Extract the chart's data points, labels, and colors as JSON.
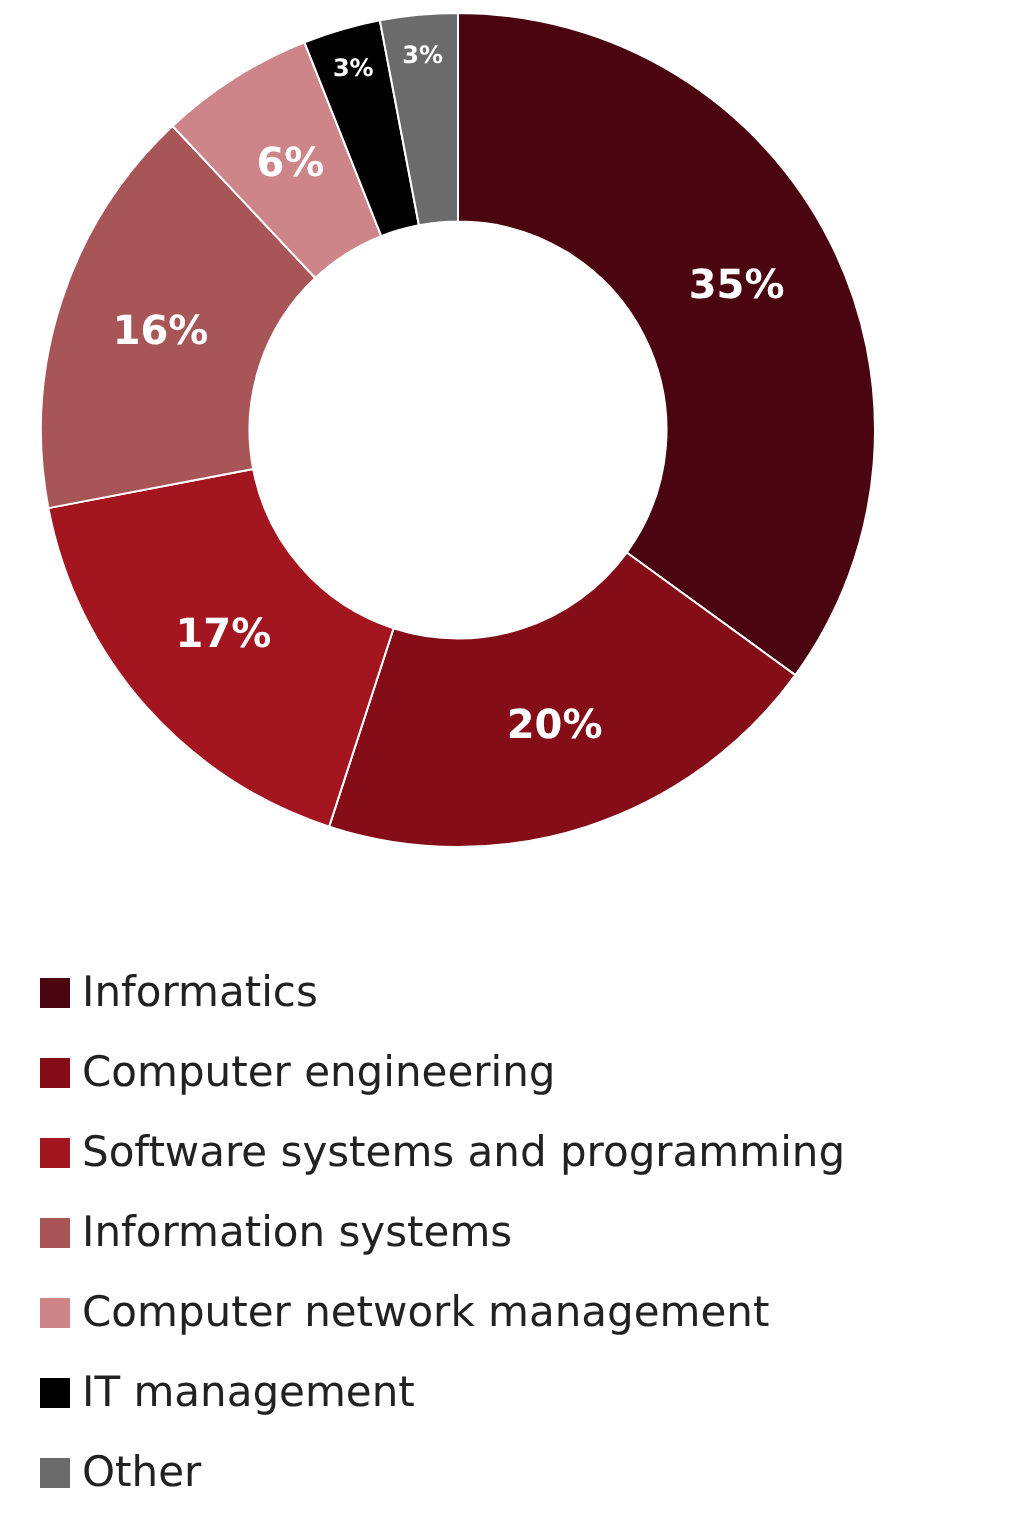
{
  "chart_data": {
    "type": "donut",
    "categories": [
      "Informatics",
      "Computer engineering",
      "Software systems and programming",
      "Information systems",
      "Computer network management",
      "IT management",
      "Other"
    ],
    "values": [
      35,
      20,
      17,
      16,
      6,
      3,
      3
    ],
    "colors": [
      "#4a0510",
      "#850d18",
      "#a3161f",
      "#a85558",
      "#cd8589",
      "#000000",
      "#6b6b6b"
    ],
    "value_labels": [
      "35%",
      "20%",
      "17%",
      "16%",
      "6%",
      "3%",
      "3%"
    ],
    "legend": "bottom"
  }
}
